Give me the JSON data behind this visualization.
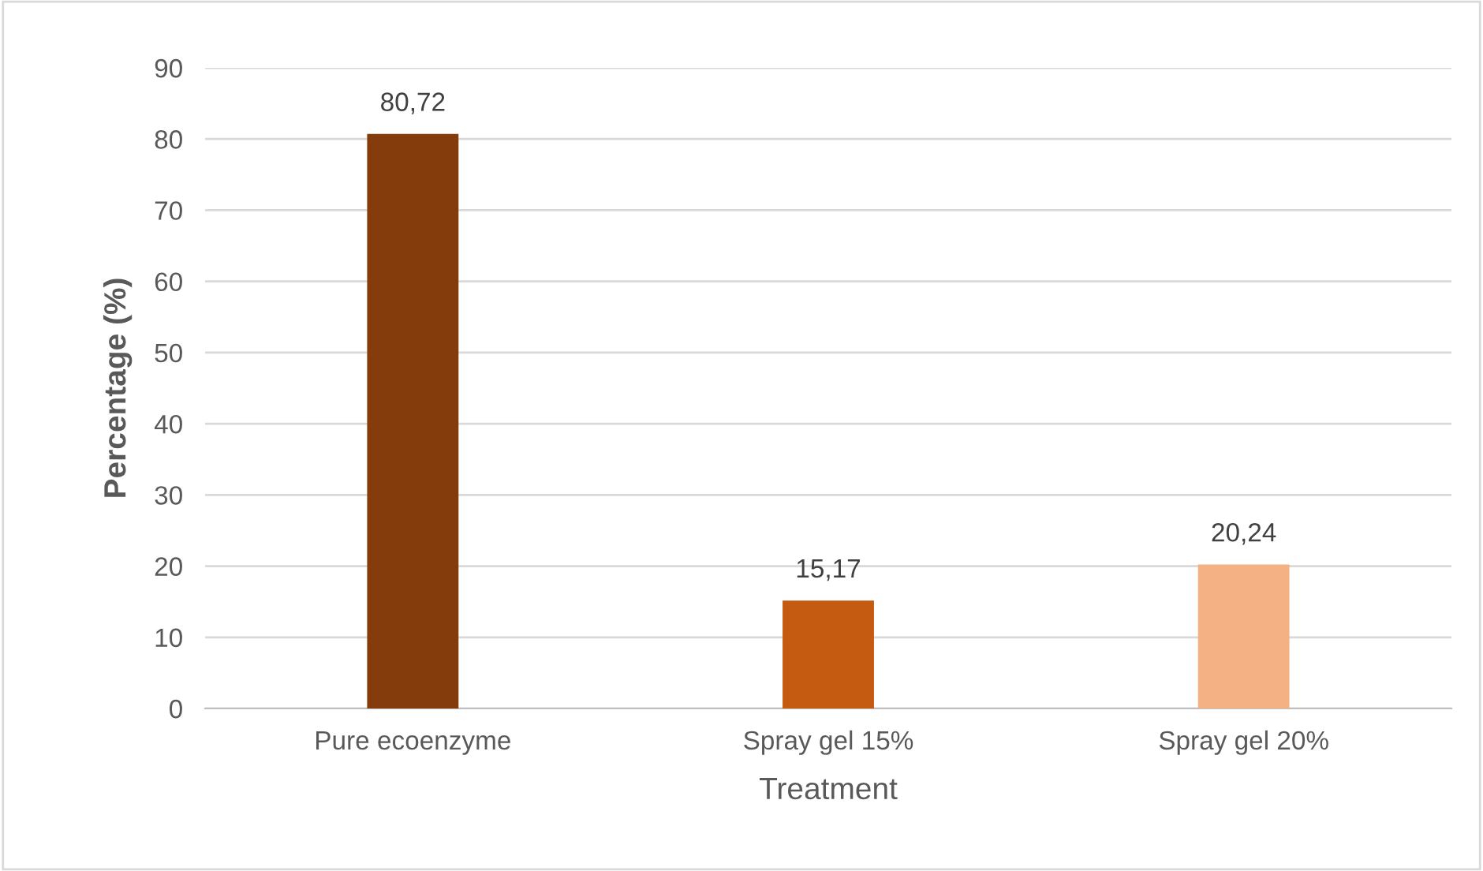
{
  "chart_data": {
    "type": "bar",
    "categories": [
      "Pure ecoenzyme",
      "Spray gel 15%",
      "Spray gel 20%"
    ],
    "values": [
      80.72,
      15.17,
      20.24
    ],
    "colors": [
      "#843c0c",
      "#c55a11",
      "#f4b183"
    ],
    "value_labels": [
      "80,72",
      "15,17",
      "20,24"
    ],
    "xlabel": "Treatment",
    "ylabel": "Percentage (%)",
    "ylim": [
      0,
      90
    ],
    "yticks": [
      0,
      10,
      20,
      30,
      40,
      50,
      60,
      70,
      80,
      90
    ],
    "grid": "y",
    "legend": false
  }
}
